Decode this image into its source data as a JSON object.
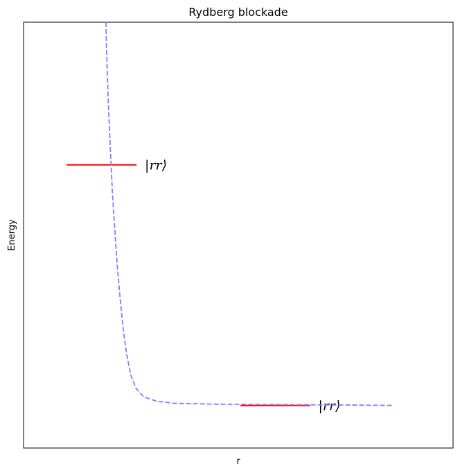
{
  "chart_data": {
    "type": "line",
    "title": "Rydberg blockade",
    "xlabel": "r",
    "ylabel": "Energy",
    "xticks": [],
    "yticks": [],
    "grid": false,
    "xlim": [
      0,
      1
    ],
    "ylim": [
      0,
      1
    ],
    "series": [
      {
        "style": "dashed",
        "color": "#7f7fff",
        "points": [
          [
            0.192,
            1.0
          ],
          [
            0.193,
            0.94
          ],
          [
            0.195,
            0.88
          ],
          [
            0.197,
            0.82
          ],
          [
            0.2,
            0.75
          ],
          [
            0.203,
            0.68
          ],
          [
            0.207,
            0.6
          ],
          [
            0.212,
            0.52
          ],
          [
            0.218,
            0.43
          ],
          [
            0.225,
            0.35
          ],
          [
            0.232,
            0.28
          ],
          [
            0.24,
            0.22
          ],
          [
            0.25,
            0.17
          ],
          [
            0.262,
            0.14
          ],
          [
            0.28,
            0.12
          ],
          [
            0.31,
            0.11
          ],
          [
            0.35,
            0.105
          ],
          [
            0.45,
            0.103
          ],
          [
            0.6,
            0.102
          ],
          [
            0.75,
            0.101
          ],
          [
            0.86,
            0.1
          ]
        ]
      }
    ],
    "levels": [
      {
        "x": [
          0.1,
          0.263
        ],
        "y": 0.665,
        "color": "#ff0000",
        "label": "|rr⟩"
      },
      {
        "x": [
          0.505,
          0.667
        ],
        "y": 0.1,
        "color": "#ff0000",
        "label": "|rr⟩"
      }
    ]
  }
}
